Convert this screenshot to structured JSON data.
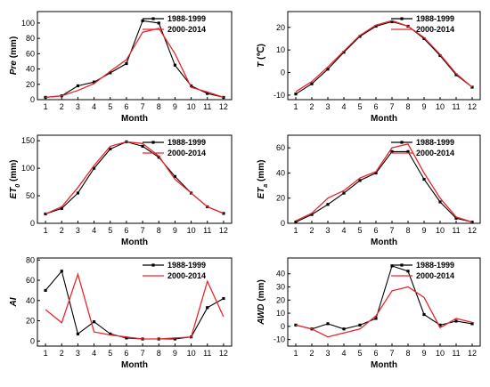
{
  "chart_data": [
    {
      "type": "line",
      "ylabel": "Pre (mm)",
      "ylabel_parts": [
        {
          "t": "Pre",
          "i": true
        },
        {
          "t": " (mm)",
          "i": false
        }
      ],
      "xlabel": "Month",
      "x": [
        1,
        2,
        3,
        4,
        5,
        6,
        7,
        8,
        9,
        10,
        11,
        12
      ],
      "ylim": [
        0,
        115
      ],
      "yticks": [
        0,
        20,
        40,
        60,
        80,
        100
      ],
      "legend": "top-right",
      "series": [
        {
          "name": "1988-1999",
          "color": "#000000",
          "marker": "square",
          "values": [
            3,
            5,
            18,
            23,
            35,
            47,
            103,
            100,
            45,
            18,
            8,
            3
          ]
        },
        {
          "name": "2000-2014",
          "color": "#e8262c",
          "marker": "none",
          "values": [
            3,
            5,
            12,
            21,
            37,
            52,
            88,
            93,
            60,
            16,
            10,
            3
          ]
        }
      ]
    },
    {
      "type": "line",
      "ylabel": "T (℃)",
      "ylabel_parts": [
        {
          "t": "T",
          "i": true
        },
        {
          "t": " (℃)",
          "i": false
        }
      ],
      "xlabel": "Month",
      "x": [
        1,
        2,
        3,
        4,
        5,
        6,
        7,
        8,
        9,
        10,
        11,
        12
      ],
      "ylim": [
        -12,
        27
      ],
      "yticks": [
        -10,
        0,
        10,
        20
      ],
      "legend": "top-right",
      "series": [
        {
          "name": "1988-1999",
          "color": "#000000",
          "marker": "square",
          "values": [
            -9.5,
            -5,
            1.5,
            9,
            16,
            20.5,
            22.5,
            20.5,
            15,
            7.5,
            -1,
            -6.5
          ]
        },
        {
          "name": "2000-2014",
          "color": "#e8262c",
          "marker": "none",
          "values": [
            -8.5,
            -4,
            2.5,
            9.5,
            16.5,
            21,
            23,
            20.5,
            15.5,
            8,
            -0.5,
            -6.5
          ]
        }
      ]
    },
    {
      "type": "line",
      "ylabel": "ET0 (mm)",
      "ylabel_parts": [
        {
          "t": "ET",
          "i": true
        },
        {
          "t": "0",
          "i": true,
          "sub": true
        },
        {
          "t": " (mm)",
          "i": false
        }
      ],
      "xlabel": "Month",
      "x": [
        1,
        2,
        3,
        4,
        5,
        6,
        7,
        8,
        9,
        10,
        11,
        12
      ],
      "ylim": [
        0,
        160
      ],
      "yticks": [
        0,
        50,
        100,
        150
      ],
      "legend": "top-right",
      "series": [
        {
          "name": "1988-1999",
          "color": "#000000",
          "marker": "square",
          "values": [
            17,
            27,
            55,
            100,
            135,
            148,
            140,
            120,
            85,
            55,
            30,
            18
          ]
        },
        {
          "name": "2000-2014",
          "color": "#e8262c",
          "marker": "none",
          "values": [
            17,
            30,
            65,
            105,
            140,
            148,
            145,
            122,
            80,
            55,
            30,
            18
          ]
        }
      ]
    },
    {
      "type": "line",
      "ylabel": "ETa (mm)",
      "ylabel_parts": [
        {
          "t": "ET",
          "i": true
        },
        {
          "t": "a",
          "i": true,
          "sub": true
        },
        {
          "t": " (mm)",
          "i": false
        }
      ],
      "xlabel": "Month",
      "x": [
        1,
        2,
        3,
        4,
        5,
        6,
        7,
        8,
        9,
        10,
        11,
        12
      ],
      "ylim": [
        0,
        70
      ],
      "yticks": [
        0,
        20,
        40,
        60
      ],
      "legend": "top-right",
      "series": [
        {
          "name": "1988-1999",
          "color": "#000000",
          "marker": "square",
          "values": [
            1,
            7,
            15,
            24,
            34,
            40,
            57,
            57,
            35,
            17,
            4,
            1
          ]
        },
        {
          "name": "2000-2014",
          "color": "#e8262c",
          "marker": "none",
          "values": [
            2,
            8,
            20,
            26,
            36,
            41,
            60,
            63,
            40,
            20,
            5,
            1
          ]
        }
      ]
    },
    {
      "type": "line",
      "ylabel": "AI",
      "ylabel_parts": [
        {
          "t": "AI",
          "i": true
        }
      ],
      "xlabel": "Month",
      "x": [
        1,
        2,
        3,
        4,
        5,
        6,
        7,
        8,
        9,
        10,
        11,
        12
      ],
      "ylim": [
        -5,
        82
      ],
      "yticks": [
        0,
        20,
        40,
        60,
        80
      ],
      "legend": "top-right",
      "series": [
        {
          "name": "1988-1999",
          "color": "#000000",
          "marker": "square",
          "values": [
            50,
            69,
            7,
            19,
            7,
            3,
            2,
            2,
            2,
            4,
            33,
            42
          ]
        },
        {
          "name": "2000-2014",
          "color": "#e8262c",
          "marker": "none",
          "values": [
            31,
            18,
            66,
            9,
            6,
            4,
            2,
            2,
            3,
            4,
            59,
            24
          ]
        }
      ]
    },
    {
      "type": "line",
      "ylabel": "AWD (mm)",
      "ylabel_parts": [
        {
          "t": "AWD",
          "i": true
        },
        {
          "t": " (mm)",
          "i": false
        }
      ],
      "xlabel": "Month",
      "x": [
        1,
        2,
        3,
        4,
        5,
        6,
        7,
        8,
        9,
        10,
        11,
        12
      ],
      "ylim": [
        -15,
        52
      ],
      "yticks": [
        -10,
        0,
        10,
        20,
        30,
        40
      ],
      "legend": "top-right",
      "series": [
        {
          "name": "1988-1999",
          "color": "#000000",
          "marker": "square",
          "values": [
            1,
            -2,
            2,
            -2,
            1,
            6,
            46,
            42,
            9,
            1,
            4,
            2
          ]
        },
        {
          "name": "2000-2014",
          "color": "#e8262c",
          "marker": "none",
          "values": [
            1,
            -2,
            -8,
            -5,
            -2,
            8,
            27,
            30,
            22,
            -1,
            6,
            3
          ]
        }
      ]
    }
  ]
}
